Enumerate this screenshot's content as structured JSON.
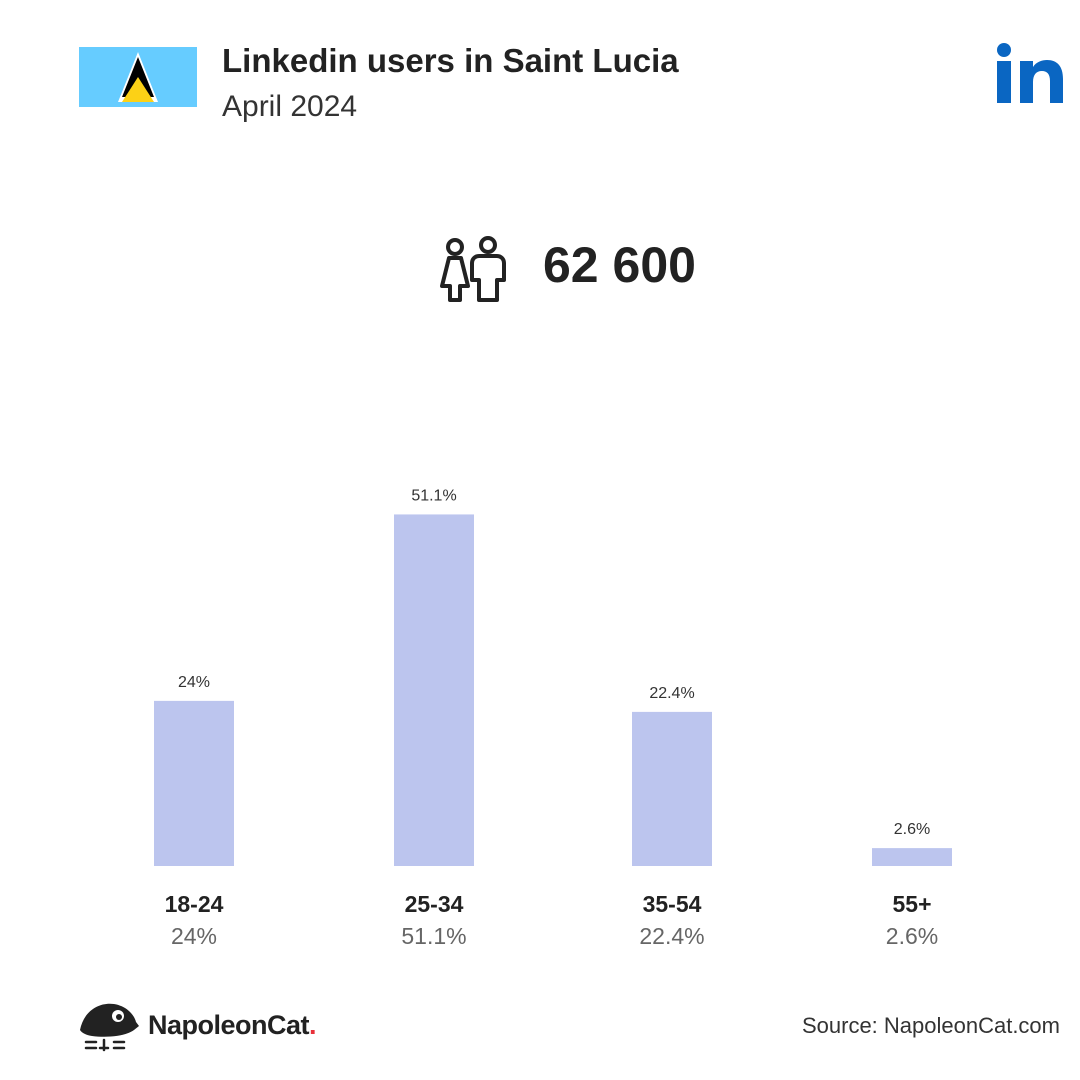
{
  "header": {
    "title": "Linkedin users in Saint Lucia",
    "subtitle": "April 2024",
    "flag_colors": {
      "field": "#66ccff",
      "white": "#ffffff",
      "black": "#000000",
      "gold": "#fcd116"
    },
    "brand_color": "#0a66c2"
  },
  "total": {
    "value": "62 600",
    "icon": "people-icon"
  },
  "chart_data": {
    "type": "bar",
    "categories": [
      "18-24",
      "25-34",
      "35-54",
      "55+"
    ],
    "values": [
      24,
      51.1,
      22.4,
      2.6
    ],
    "value_labels": [
      "24%",
      "51.1%",
      "22.4%",
      "2.6%"
    ],
    "unit": "%",
    "bar_color": "#bcc5ee",
    "grid": false,
    "legend": "none"
  },
  "footer": {
    "brand_name": "NapoleonCat",
    "brand_dot": ".",
    "source": "Source: NapoleonCat.com"
  }
}
